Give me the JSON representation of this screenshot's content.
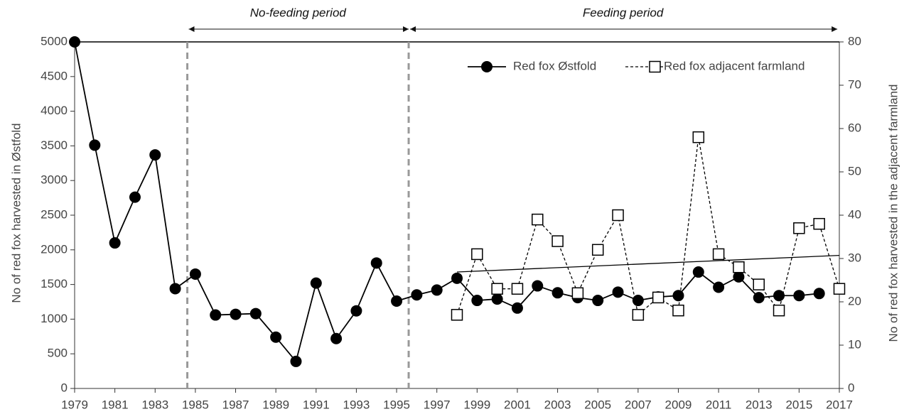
{
  "chart_data": {
    "type": "line",
    "y_label": "No of red fox harvested in Østfold",
    "y2_label": "No of red fox harvested in the adjacent farmland",
    "x": [
      1979,
      1980,
      1981,
      1982,
      1983,
      1984,
      1985,
      1986,
      1987,
      1988,
      1989,
      1990,
      1991,
      1992,
      1993,
      1994,
      1995,
      1996,
      1997,
      1998,
      1999,
      2000,
      2001,
      2002,
      2003,
      2004,
      2005,
      2006,
      2007,
      2008,
      2009,
      2010,
      2011,
      2012,
      2013,
      2014,
      2015,
      2016,
      2017
    ],
    "series": [
      {
        "name": "Red fox Østfold",
        "color": "#000000",
        "marker": "circle",
        "dashed": false,
        "values": [
          5000,
          3510,
          2100,
          2760,
          3370,
          1440,
          1650,
          1060,
          1070,
          1080,
          740,
          390,
          1520,
          720,
          1120,
          1810,
          1260,
          1350,
          1420,
          1590,
          1270,
          1290,
          1160,
          1480,
          1380,
          1310,
          1270,
          1390,
          1270,
          1320,
          1340,
          1680,
          1460,
          1610,
          1310,
          1340,
          1340,
          1370,
          null
        ]
      },
      {
        "name": "Red fox adjacent farmland",
        "color": "#000000",
        "marker": "square",
        "dashed": true,
        "axis": "y2",
        "values": [
          null,
          null,
          null,
          null,
          null,
          null,
          null,
          null,
          null,
          null,
          null,
          null,
          null,
          null,
          null,
          null,
          null,
          null,
          null,
          17,
          31,
          23,
          23,
          39,
          34,
          22,
          32,
          40,
          17,
          21,
          18,
          58,
          31,
          28,
          24,
          18,
          37,
          38,
          23
        ]
      }
    ],
    "trend": {
      "x": [
        1998,
        2017
      ],
      "values": [
        1680,
        1920
      ]
    },
    "periods": [
      {
        "label": "No-feeding period",
        "start": 1984.6,
        "end": 1995.6
      },
      {
        "label": "Feeding period",
        "start": 1995.6,
        "end": 2016.9
      }
    ],
    "xlim": [
      1979,
      2017
    ],
    "xticks": [
      1979,
      1981,
      1983,
      1985,
      1987,
      1989,
      1991,
      1993,
      1995,
      1997,
      1999,
      2001,
      2003,
      2005,
      2007,
      2009,
      2011,
      2013,
      2015,
      2017
    ],
    "ylim": [
      0,
      5000
    ],
    "yticks": [
      0,
      500,
      1000,
      1500,
      2000,
      2500,
      3000,
      3500,
      4000,
      4500,
      5000
    ],
    "y2lim": [
      0,
      80
    ],
    "y2ticks": [
      0,
      10,
      20,
      30,
      40,
      50,
      60,
      70,
      80
    ],
    "legend": "top-right"
  }
}
